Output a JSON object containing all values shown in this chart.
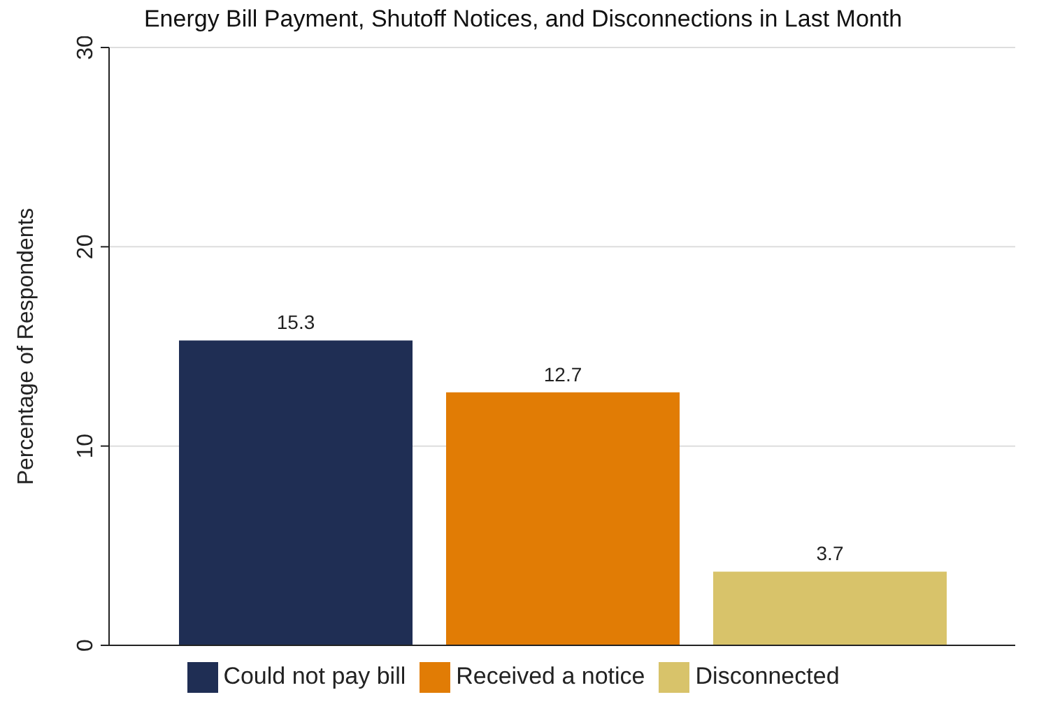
{
  "chart_data": {
    "type": "bar",
    "title": "Energy Bill Payment, Shutoff Notices, and Disconnections in Last Month",
    "ylabel": "Percentage of Respondents",
    "categories": [
      null
    ],
    "series": [
      {
        "name": "Could not pay bill",
        "color": "#1f2e54",
        "values": [
          15.3
        ]
      },
      {
        "name": "Received a notice",
        "color": "#e17c05",
        "values": [
          12.7
        ]
      },
      {
        "name": "Disconnected",
        "color": "#d8c36a",
        "values": [
          3.7
        ]
      }
    ],
    "ylim": [
      0,
      30
    ],
    "yticks": [
      0,
      10,
      20,
      30
    ],
    "grid": "y",
    "legend": "bottom",
    "data_labels": true
  }
}
